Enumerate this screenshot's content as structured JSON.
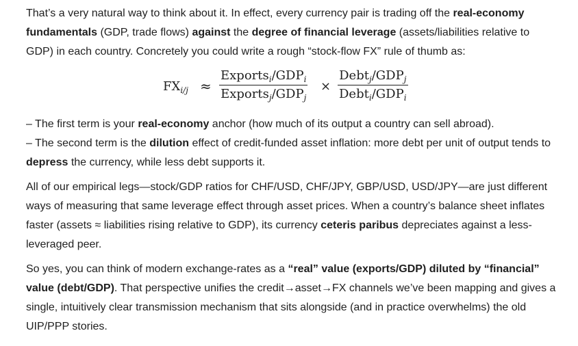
{
  "p1": {
    "t1": "That’s a very natural way to think about it. In effect, every currency pair is trading off the ",
    "b1": "real-economy fundamentals",
    "t2": " (GDP, trade flows) ",
    "b2": "against",
    "t3": " the ",
    "b3": "degree of financial leverage",
    "t4": " (assets/liabilities relative to GDP) in each country. Concretely you could write a rough “stock-flow FX” rule of thumb as:"
  },
  "formula": {
    "lhs_base": "FX",
    "lhs_sub": "i/j",
    "approx": "≈",
    "f1_num_base": "Exports",
    "f1_num_sub1": "i",
    "f1_num_mid": "/GDP",
    "f1_num_sub2": "i",
    "f1_den_base": "Exports",
    "f1_den_sub1": "j",
    "f1_den_mid": "/GDP",
    "f1_den_sub2": "j",
    "times": "×",
    "f2_num_base": "Debt",
    "f2_num_sub1": "j",
    "f2_num_mid": "/GDP",
    "f2_num_sub2": "j",
    "f2_den_base": "Debt",
    "f2_den_sub1": "i",
    "f2_den_mid": "/GDP",
    "f2_den_sub2": "i"
  },
  "bullet1": {
    "t1": "– The first term is your ",
    "b1": "real-economy",
    "t2": " anchor (how much of its output a country can sell abroad)."
  },
  "bullet2": {
    "t1": "– The second term is the ",
    "b1": "dilution",
    "t2": " effect of credit-funded asset inflation: more debt per unit of output tends to ",
    "b2": "depress",
    "t3": " the currency, while less debt supports it."
  },
  "p2": {
    "t1": "All of our empirical legs—stock/GDP ratios for CHF/USD, CHF/JPY, GBP/USD, USD/JPY—are just different ways of measuring that same leverage effect through asset prices. When a country’s balance sheet inflates faster (assets ≈ liabilities rising relative to GDP), its currency ",
    "b1": "ceteris paribus",
    "t2": " depreciates against a less-leveraged peer."
  },
  "p3": {
    "t1": "So yes, you can think of modern exchange-rates as a ",
    "b1": "“real” value (exports/GDP) diluted by “financial” value (debt/GDP)",
    "t2": ". That perspective unifies the credit→asset→FX channels we’ve been mapping and gives a single, intuitively clear transmission mechanism that sits alongside (and in practice overwhelms) the old UIP/PPP stories."
  }
}
